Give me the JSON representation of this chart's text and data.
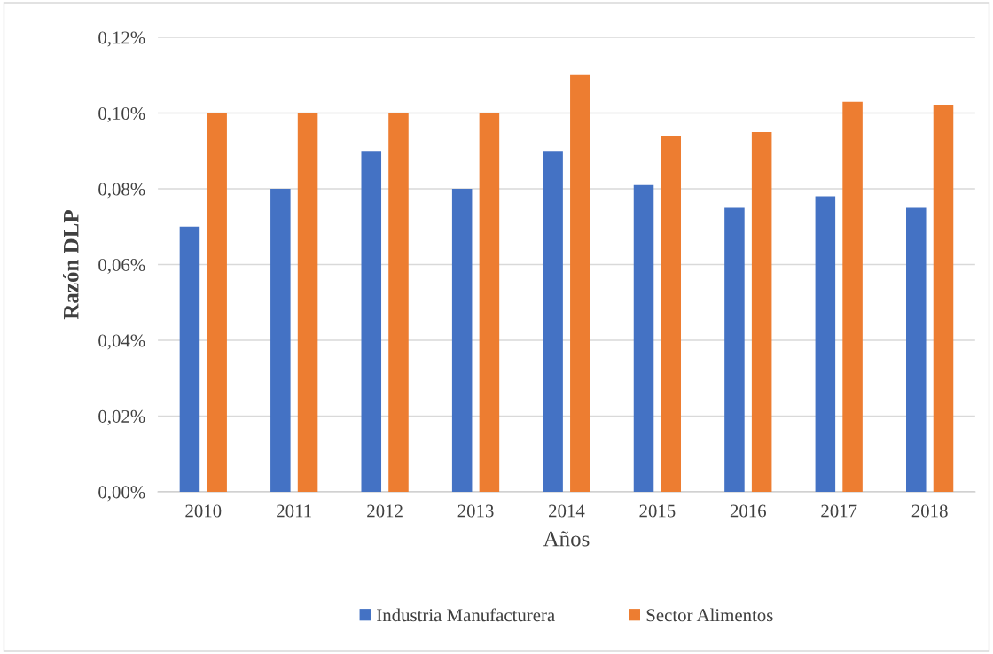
{
  "chart_data": {
    "type": "bar",
    "ylabel": "Razón DLP",
    "xlabel": "Años",
    "categories": [
      "2010",
      "2011",
      "2012",
      "2013",
      "2014",
      "2015",
      "2016",
      "2017",
      "2018"
    ],
    "series": [
      {
        "name": "Industria Manufacturera",
        "color": "#4472c4",
        "values": [
          0.07,
          0.08,
          0.09,
          0.08,
          0.09,
          0.081,
          0.075,
          0.078,
          0.075
        ]
      },
      {
        "name": "Sector Alimentos",
        "color": "#ed7d31",
        "values": [
          0.1,
          0.1,
          0.1,
          0.1,
          0.11,
          0.094,
          0.095,
          0.103,
          0.102
        ]
      }
    ],
    "ylim": [
      0,
      0.12
    ],
    "yticks": [
      {
        "value": 0,
        "label": "0,00%"
      },
      {
        "value": 0.02,
        "label": "0,02%"
      },
      {
        "value": 0.04,
        "label": "0,04%"
      },
      {
        "value": 0.06,
        "label": "0,06%"
      },
      {
        "value": 0.08,
        "label": "0,08%"
      },
      {
        "value": 0.1,
        "label": "0,10%"
      },
      {
        "value": 0.12,
        "label": "0,12%"
      }
    ],
    "grid": "y",
    "legend": "bottom"
  }
}
